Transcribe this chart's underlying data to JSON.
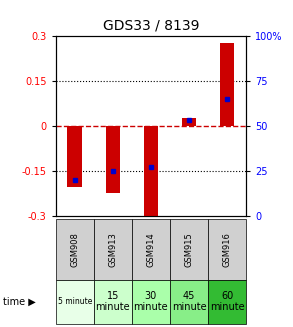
{
  "title": "GDS33 / 8139",
  "samples": [
    "GSM908",
    "GSM913",
    "GSM914",
    "GSM915",
    "GSM916"
  ],
  "time_labels": [
    "5 minute",
    "15\nminute",
    "30\nminute",
    "45\nminute",
    "60\nminute"
  ],
  "time_colors": [
    "#e8ffe8",
    "#ccffcc",
    "#aaffaa",
    "#88ee88",
    "#33bb33"
  ],
  "log_ratios": [
    -0.205,
    -0.225,
    -0.315,
    0.028,
    0.275
  ],
  "percentile_ranks": [
    20,
    25,
    27,
    53,
    65
  ],
  "bar_color": "#cc0000",
  "dot_color": "#0000cc",
  "ylim": [
    -0.3,
    0.3
  ],
  "y2lim": [
    0,
    100
  ],
  "yticks": [
    -0.3,
    -0.15,
    0,
    0.15,
    0.3
  ],
  "y2ticks": [
    0,
    25,
    50,
    75,
    100
  ],
  "dotted_lines_black": [
    -0.15,
    0.15
  ],
  "zero_line_color": "#cc0000",
  "gsm_bg": "#d0d0d0"
}
